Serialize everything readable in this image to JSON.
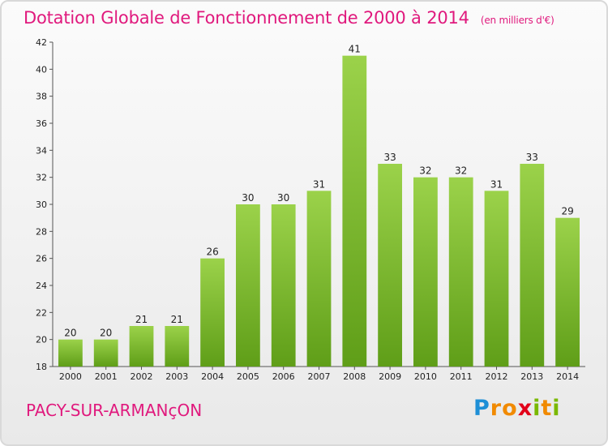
{
  "header": {
    "title": "Dotation Globale de Fonctionnement de 2000 à 2014",
    "subtitle": "(en milliers d'€)"
  },
  "commune": "PACY-SUR-ARMANçON",
  "logo": {
    "text": "Proxiti",
    "colors": [
      "#1e8fd6",
      "#f18a00",
      "#e2001a",
      "#7ab800"
    ]
  },
  "chart_data": {
    "type": "bar",
    "title": "Dotation Globale de Fonctionnement de 2000 à 2014",
    "subtitle": "(en milliers d'€)",
    "categories": [
      "2000",
      "2001",
      "2002",
      "2003",
      "2004",
      "2005",
      "2006",
      "2007",
      "2008",
      "2009",
      "2010",
      "2011",
      "2012",
      "2013",
      "2014"
    ],
    "values": [
      20,
      20,
      21,
      21,
      26,
      30,
      30,
      31,
      41,
      33,
      32,
      32,
      31,
      33,
      29
    ],
    "data_labels": [
      "20",
      "20",
      "21",
      "21",
      "26",
      "30",
      "30",
      "31",
      "41",
      "33",
      "32",
      "32",
      "31",
      "33",
      "29"
    ],
    "ylim": [
      18,
      42
    ],
    "yticks": [
      18,
      20,
      22,
      24,
      26,
      28,
      30,
      32,
      34,
      36,
      38,
      40,
      42
    ],
    "ytick_labels": [
      "18",
      "20",
      "22",
      "24",
      "26",
      "28",
      "30",
      "32",
      "34",
      "36",
      "38",
      "40",
      "42"
    ],
    "grid": false,
    "bar_color": "#7cbf2e",
    "xlabel": "",
    "ylabel": ""
  }
}
